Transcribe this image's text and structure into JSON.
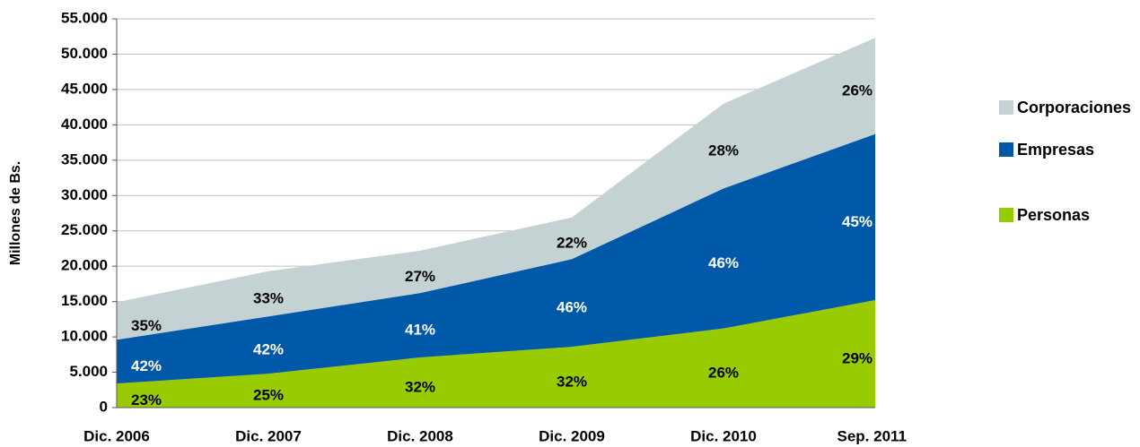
{
  "chart_data": {
    "type": "stacked_area",
    "y_axis_label": "Millones de Bs.",
    "categories": [
      "Dic. 2006",
      "Dic. 2007",
      "Dic. 2008",
      "Dic. 2009",
      "Dic. 2010",
      "Sep. 2011"
    ],
    "series": [
      {
        "name": "Personas",
        "color": "#99cc00",
        "label_color": "#000000",
        "values": [
          3400,
          4800,
          7100,
          8600,
          11200,
          15200
        ],
        "share_labels": [
          "23%",
          "25%",
          "32%",
          "32%",
          "26%",
          "29%"
        ]
      },
      {
        "name": "Empresas",
        "color": "#0058a8",
        "label_color": "#ffffff",
        "values": [
          6200,
          8100,
          9100,
          12400,
          19800,
          23500
        ],
        "share_labels": [
          "42%",
          "42%",
          "41%",
          "46%",
          "46%",
          "45%"
        ]
      },
      {
        "name": "Corporaciones",
        "color": "#c5d2d3",
        "label_color": "#000000",
        "values": [
          5300,
          6400,
          6000,
          5900,
          12000,
          13600
        ],
        "share_labels": [
          "35%",
          "33%",
          "27%",
          "22%",
          "28%",
          "26%"
        ]
      }
    ],
    "ylim": [
      0,
      55000
    ],
    "yticks": [
      0,
      {
        "value": 5000,
        "label": "5.000"
      },
      {
        "value": 10000,
        "label": "10.000"
      },
      {
        "value": 15000,
        "label": "15.000"
      },
      {
        "value": 20000,
        "label": "20.000"
      },
      {
        "value": 25000,
        "label": "25.000"
      },
      {
        "value": 30000,
        "label": "30.000"
      },
      {
        "value": 35000,
        "label": "35.000"
      },
      {
        "value": 40000,
        "label": "40.000"
      },
      {
        "value": 45000,
        "label": "45.000"
      },
      {
        "value": 50000,
        "label": "50.000"
      },
      {
        "value": 55000,
        "label": "55.000"
      }
    ],
    "grid": true,
    "legend": "right"
  }
}
